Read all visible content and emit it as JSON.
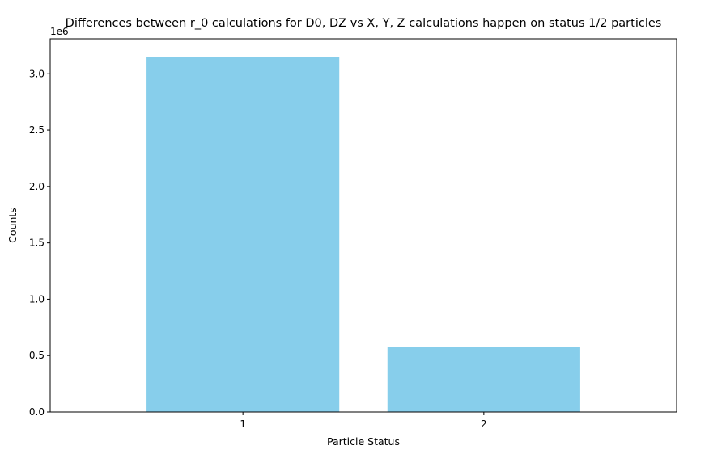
{
  "chart_data": {
    "type": "bar",
    "title": "Differences between r_0 calculations for D0, DZ vs X, Y, Z calculations happen on status 1/2 particles",
    "xlabel": "Particle Status",
    "ylabel": "Counts",
    "categories": [
      "1",
      "2"
    ],
    "values": [
      3150000,
      580000
    ],
    "ylim": [
      0,
      3310000
    ],
    "y_ticks": [
      0,
      0.5,
      1.0,
      1.5,
      2.0,
      2.5,
      3.0
    ],
    "y_tick_labels": [
      "0.0",
      "0.5",
      "1.0",
      "1.5",
      "2.0",
      "2.5",
      "3.0"
    ],
    "y_scale_multiplier": 1000000,
    "y_offset_label": "1e6",
    "bar_color": "#87ceeb",
    "grid": false
  }
}
